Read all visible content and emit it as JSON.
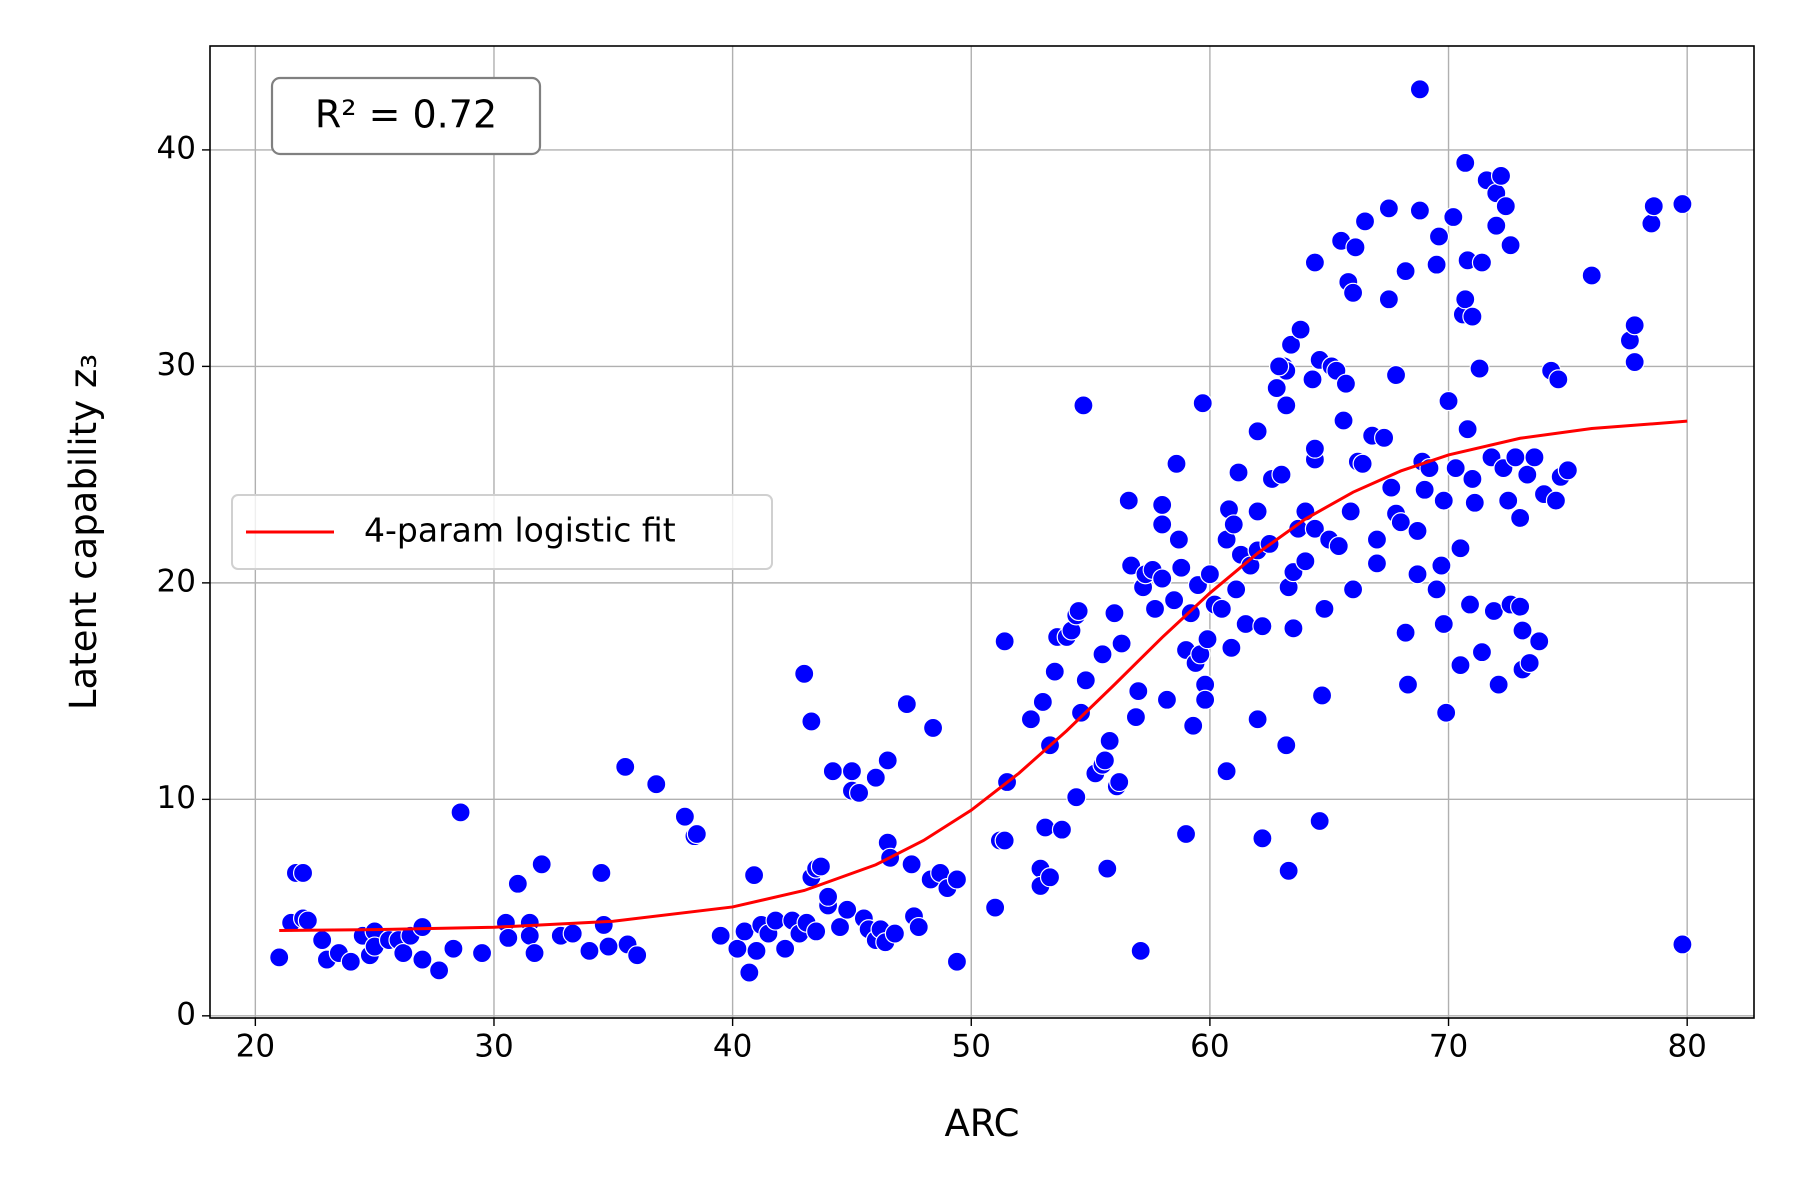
{
  "chart_data": {
    "type": "scatter",
    "x_label": "ARC",
    "y_label": "Latent capability z₃",
    "annotation": "R² = 0.72",
    "xlim": [
      18.1,
      82.8
    ],
    "ylim": [
      -0.1,
      44.8
    ],
    "xticks": [
      20,
      30,
      40,
      50,
      60,
      70,
      80
    ],
    "yticks": [
      0,
      10,
      20,
      30,
      40
    ],
    "grid": true,
    "legend": "center left",
    "series": [
      {
        "color": "#0000ff",
        "x": [
          21,
          21.5,
          21.7,
          22,
          22,
          22.2,
          22.8,
          23,
          23.5,
          24,
          24.5,
          24.8,
          25,
          25,
          25.6,
          26,
          26.2,
          26.5,
          27,
          27,
          27.7,
          28.3,
          28.6,
          29.5,
          30.5,
          30.6,
          31,
          31.5,
          31.5,
          31.7,
          32,
          32.8,
          33.3,
          34,
          34.5,
          34.6,
          34.8,
          35.5,
          35.6,
          36,
          36.8,
          38,
          38.4,
          38.5,
          39.5,
          40.2,
          40.5,
          40.7,
          40.9,
          41,
          41.2,
          41.5,
          41.8,
          42.2,
          42.5,
          42.8,
          43,
          43.1,
          43.3,
          43.5,
          43.3,
          43.5,
          43.7,
          44,
          44,
          44.2,
          44.5,
          44.8,
          45,
          45,
          45.3,
          45.5,
          45.7,
          46,
          46,
          46.2,
          46.4,
          46.5,
          46.5,
          46.6,
          46.8,
          47.3,
          47.5,
          47.6,
          47.8,
          48.3,
          48.4,
          48.7,
          49,
          49.4,
          49.4,
          51,
          51.2,
          51.4,
          51.4,
          51.5,
          52.5,
          52.9,
          52.9,
          53,
          53.1,
          53.3,
          53.3,
          53.5,
          53.6,
          53.8,
          54,
          54.2,
          54.4,
          54.5,
          54.4,
          54.6,
          54.7,
          54.8,
          55.2,
          55.5,
          55.5,
          55.6,
          55.7,
          55.8,
          56,
          56.1,
          56.2,
          56.3,
          56.6,
          56.7,
          56.9,
          57,
          57.1,
          57.2,
          57.3,
          57.6,
          57.7,
          58,
          58,
          58,
          58.2,
          58.5,
          58.6,
          58.7,
          58.8,
          59,
          59,
          59.2,
          59.3,
          59.4,
          59.5,
          59.6,
          59.7,
          59.8,
          59.8,
          59.9,
          60,
          60.2,
          60.5,
          60.7,
          60.7,
          60.8,
          60.9,
          61,
          61.1,
          61.2,
          61.3,
          61.5,
          61.7,
          62,
          62,
          62,
          62,
          62.2,
          62.2,
          62.5,
          62.6,
          62.8,
          63,
          63.1,
          63.2,
          63.2,
          63.3,
          63.3,
          63.4,
          63.5,
          63.5,
          63.7,
          63.8,
          64,
          64,
          64.3,
          64.4,
          64.4,
          64.4,
          64.4,
          64.6,
          64.6,
          64.7,
          64.8,
          65,
          65.1,
          65.3,
          65.4,
          65.5,
          65.6,
          65.7,
          65.8,
          65.9,
          66,
          66.1,
          66,
          66.2,
          66.4,
          66.5,
          66.8,
          67,
          67,
          67.3,
          67.5,
          67.5,
          67.6,
          67.8,
          67.8,
          68,
          68.2,
          68.2,
          68.3,
          68.7,
          68.8,
          68.7,
          68.9,
          69,
          69.2,
          69.5,
          69.5,
          69.6,
          69.7,
          69.8,
          69.8,
          69.9,
          70,
          70.2,
          70.3,
          70.5,
          70.5,
          70.6,
          70.7,
          70.7,
          70.8,
          70.8,
          70.9,
          71,
          71,
          71.1,
          71.3,
          71.4,
          71.4,
          71.6,
          71.8,
          71.9,
          72,
          72,
          72.2,
          72.1,
          72.3,
          72.4,
          72.5,
          72.6,
          72.6,
          72.8,
          73,
          73,
          73.1,
          73.1,
          73.3,
          73.4,
          73.6,
          73.8,
          74,
          74.3,
          74.5,
          74.6,
          74.7,
          75,
          76,
          77.6,
          77.8,
          77.8,
          78.5,
          78.6,
          79.8,
          79.8,
          68.8,
          63.2,
          62.9
        ],
        "values": [
          2.7,
          4.3,
          6.6,
          6.6,
          4.5,
          4.4,
          3.5,
          2.6,
          2.9,
          2.5,
          3.7,
          2.8,
          3.9,
          3.2,
          3.5,
          3.5,
          2.9,
          3.7,
          2.6,
          4.1,
          2.1,
          3.1,
          9.4,
          2.9,
          4.3,
          3.6,
          6.1,
          4.3,
          3.7,
          2.9,
          7,
          3.7,
          3.8,
          3,
          6.6,
          4.2,
          3.2,
          11.5,
          3.3,
          2.8,
          10.7,
          9.2,
          8.3,
          8.4,
          3.7,
          3.1,
          3.9,
          2,
          6.5,
          3,
          4.2,
          3.8,
          4.4,
          3.1,
          4.4,
          3.8,
          15.8,
          4.3,
          13.6,
          3.9,
          6.4,
          6.8,
          6.9,
          5.1,
          5.5,
          11.3,
          4.1,
          4.9,
          11.3,
          10.4,
          10.3,
          4.5,
          4,
          11,
          3.5,
          4,
          3.4,
          11.8,
          8,
          7.3,
          3.8,
          14.4,
          7,
          4.6,
          4.1,
          6.3,
          13.3,
          6.6,
          5.9,
          6.3,
          2.5,
          5,
          8.1,
          8.1,
          17.3,
          10.8,
          13.7,
          6.8,
          6,
          14.5,
          8.7,
          12.5,
          6.4,
          15.9,
          17.5,
          8.6,
          17.5,
          17.8,
          18.5,
          18.7,
          10.1,
          14,
          28.2,
          15.5,
          11.2,
          11.6,
          16.7,
          11.8,
          6.8,
          12.7,
          18.6,
          10.6,
          10.8,
          17.2,
          23.8,
          20.8,
          13.8,
          15,
          3,
          19.8,
          20.4,
          20.6,
          18.8,
          20.2,
          22.7,
          23.6,
          14.6,
          19.2,
          25.5,
          22,
          20.7,
          8.4,
          16.9,
          18.6,
          13.4,
          16.3,
          19.9,
          16.7,
          28.3,
          15.3,
          14.6,
          17.4,
          20.4,
          19,
          18.8,
          22,
          11.3,
          23.4,
          17,
          22.7,
          19.7,
          25.1,
          21.3,
          18.1,
          20.8,
          21.5,
          27,
          13.7,
          23.3,
          8.2,
          18,
          21.8,
          24.8,
          29,
          25,
          30,
          28.2,
          12.5,
          6.7,
          19.8,
          31,
          20.5,
          17.9,
          22.5,
          31.7,
          23.3,
          21,
          29.4,
          22.5,
          25.7,
          26.2,
          34.8,
          30.3,
          9,
          14.8,
          18.8,
          22,
          30,
          29.8,
          21.7,
          35.8,
          27.5,
          29.2,
          33.9,
          23.3,
          19.7,
          35.5,
          33.4,
          25.6,
          25.5,
          36.7,
          26.8,
          22,
          20.9,
          26.7,
          37.3,
          33.1,
          24.4,
          29.6,
          23.2,
          22.8,
          34.4,
          17.7,
          15.3,
          20.4,
          37.2,
          22.4,
          25.6,
          24.3,
          25.3,
          19.7,
          34.7,
          36,
          20.8,
          18.1,
          23.8,
          14,
          28.4,
          36.9,
          25.3,
          21.6,
          16.2,
          32.4,
          33.1,
          39.4,
          34.9,
          27.1,
          19,
          32.3,
          24.8,
          23.7,
          29.9,
          34.8,
          16.8,
          38.6,
          25.8,
          18.7,
          38,
          36.5,
          38.8,
          15.3,
          25.3,
          37.4,
          23.8,
          19,
          35.6,
          25.8,
          18.9,
          23,
          17.8,
          16,
          25,
          16.3,
          25.8,
          17.3,
          24.1,
          29.8,
          23.8,
          29.4,
          24.9,
          25.2,
          34.2,
          31.2,
          31.9,
          30.2,
          36.6,
          37.4,
          37.5,
          3.3,
          42.8,
          29.8,
          30
        ]
      },
      {
        "name": "4-param logistic fit",
        "color": "#ff0000",
        "style": "line",
        "x": [
          21,
          25,
          30,
          35,
          40,
          43,
          46,
          48,
          50,
          52,
          54,
          56,
          58,
          60,
          62,
          64,
          66,
          68,
          70,
          73,
          76,
          80
        ],
        "values": [
          3.94,
          3.98,
          4.09,
          4.37,
          5.03,
          5.79,
          6.98,
          8.1,
          9.5,
          11.21,
          13.17,
          15.3,
          17.48,
          19.53,
          21.37,
          22.95,
          24.19,
          25.17,
          25.91,
          26.68,
          27.13,
          27.47
        ]
      }
    ]
  }
}
